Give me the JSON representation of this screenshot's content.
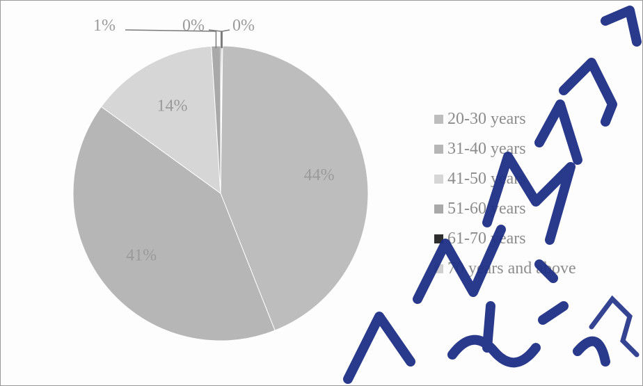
{
  "chart_data": {
    "type": "pie",
    "categories": [
      "20-30 years",
      "31-40 years",
      "41-50 years",
      "51-60 years",
      "61-70 years",
      "70 years and above"
    ],
    "values": [
      44,
      41,
      14,
      1,
      0,
      0
    ],
    "data_labels": [
      "44%",
      "41%",
      "14%",
      "1%",
      "0%",
      "0%"
    ],
    "colors": [
      "#bdbdbd",
      "#b6b6b6",
      "#d6d6d6",
      "#a9a9a9",
      "#2e2e2e",
      "#cfcfcf"
    ],
    "title": "",
    "legend_position": "right",
    "start_angle_deg": 0,
    "direction": "clockwise"
  },
  "watermark": {
    "text": "UUM MALAYSIA",
    "color": "#1e2f86"
  }
}
